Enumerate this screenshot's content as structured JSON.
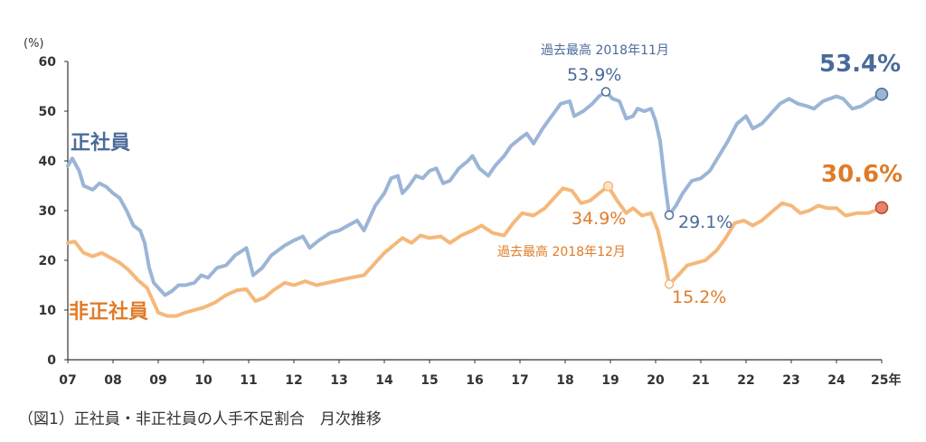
{
  "chart_data": {
    "type": "line",
    "yunit": "(%)",
    "ylim": [
      0,
      60
    ],
    "yticks": [
      "0",
      "10",
      "20",
      "30",
      "40",
      "50",
      "60"
    ],
    "xticks": [
      "07",
      "08",
      "09",
      "10",
      "11",
      "12",
      "13",
      "14",
      "15",
      "16",
      "17",
      "18",
      "19",
      "20",
      "21",
      "22",
      "23",
      "24",
      "25年"
    ],
    "series": [
      {
        "name": "正社員",
        "color": "#9bb5d6",
        "label_color": "#4a6b9a",
        "points": [
          [
            2007.0,
            39.0
          ],
          [
            2007.1,
            40.5
          ],
          [
            2007.25,
            38.0
          ],
          [
            2007.35,
            35.0
          ],
          [
            2007.55,
            34.2
          ],
          [
            2007.7,
            35.5
          ],
          [
            2007.85,
            34.8
          ],
          [
            2008.0,
            33.5
          ],
          [
            2008.15,
            32.5
          ],
          [
            2008.3,
            30.0
          ],
          [
            2008.45,
            27.0
          ],
          [
            2008.6,
            26.0
          ],
          [
            2008.7,
            23.5
          ],
          [
            2008.8,
            18.5
          ],
          [
            2008.9,
            15.5
          ],
          [
            2009.0,
            14.5
          ],
          [
            2009.15,
            13.0
          ],
          [
            2009.3,
            13.8
          ],
          [
            2009.45,
            15.0
          ],
          [
            2009.6,
            15.0
          ],
          [
            2009.8,
            15.5
          ],
          [
            2009.95,
            17.0
          ],
          [
            2010.1,
            16.5
          ],
          [
            2010.3,
            18.5
          ],
          [
            2010.5,
            19.0
          ],
          [
            2010.7,
            21.0
          ],
          [
            2010.95,
            22.5
          ],
          [
            2011.1,
            17.0
          ],
          [
            2011.3,
            18.5
          ],
          [
            2011.5,
            21.0
          ],
          [
            2011.8,
            23.0
          ],
          [
            2012.0,
            24.0
          ],
          [
            2012.2,
            24.8
          ],
          [
            2012.35,
            22.5
          ],
          [
            2012.55,
            24.0
          ],
          [
            2012.8,
            25.5
          ],
          [
            2013.0,
            26.0
          ],
          [
            2013.2,
            27.0
          ],
          [
            2013.4,
            28.0
          ],
          [
            2013.55,
            26.0
          ],
          [
            2013.8,
            31.0
          ],
          [
            2014.0,
            33.5
          ],
          [
            2014.15,
            36.5
          ],
          [
            2014.3,
            37.0
          ],
          [
            2014.4,
            33.5
          ],
          [
            2014.55,
            35.0
          ],
          [
            2014.7,
            37.0
          ],
          [
            2014.85,
            36.5
          ],
          [
            2015.0,
            38.0
          ],
          [
            2015.15,
            38.5
          ],
          [
            2015.3,
            35.5
          ],
          [
            2015.45,
            36.0
          ],
          [
            2015.65,
            38.5
          ],
          [
            2015.85,
            40.0
          ],
          [
            2015.95,
            41.0
          ],
          [
            2016.1,
            38.5
          ],
          [
            2016.3,
            37.0
          ],
          [
            2016.45,
            39.0
          ],
          [
            2016.65,
            41.0
          ],
          [
            2016.8,
            43.0
          ],
          [
            2017.0,
            44.5
          ],
          [
            2017.15,
            45.5
          ],
          [
            2017.3,
            43.5
          ],
          [
            2017.5,
            46.5
          ],
          [
            2017.7,
            49.0
          ],
          [
            2017.9,
            51.5
          ],
          [
            2018.1,
            52.0
          ],
          [
            2018.2,
            49.0
          ],
          [
            2018.4,
            50.0
          ],
          [
            2018.6,
            51.5
          ],
          [
            2018.75,
            53.0
          ],
          [
            2018.9,
            53.9
          ],
          [
            2019.05,
            52.5
          ],
          [
            2019.2,
            52.0
          ],
          [
            2019.35,
            48.5
          ],
          [
            2019.5,
            49.0
          ],
          [
            2019.6,
            50.5
          ],
          [
            2019.75,
            50.0
          ],
          [
            2019.9,
            50.5
          ],
          [
            2020.0,
            48.0
          ],
          [
            2020.1,
            44.0
          ],
          [
            2020.2,
            36.0
          ],
          [
            2020.3,
            29.1
          ],
          [
            2020.45,
            31.0
          ],
          [
            2020.6,
            33.5
          ],
          [
            2020.8,
            36.0
          ],
          [
            2021.0,
            36.5
          ],
          [
            2021.2,
            38.0
          ],
          [
            2021.4,
            41.0
          ],
          [
            2021.6,
            44.0
          ],
          [
            2021.8,
            47.5
          ],
          [
            2022.0,
            49.0
          ],
          [
            2022.15,
            46.5
          ],
          [
            2022.35,
            47.5
          ],
          [
            2022.55,
            49.5
          ],
          [
            2022.75,
            51.5
          ],
          [
            2022.95,
            52.5
          ],
          [
            2023.15,
            51.5
          ],
          [
            2023.35,
            51.0
          ],
          [
            2023.5,
            50.5
          ],
          [
            2023.7,
            52.0
          ],
          [
            2023.85,
            52.5
          ],
          [
            2024.0,
            53.0
          ],
          [
            2024.15,
            52.5
          ],
          [
            2024.35,
            50.5
          ],
          [
            2024.55,
            51.0
          ],
          [
            2024.8,
            52.5
          ],
          [
            2025.0,
            53.4
          ]
        ]
      },
      {
        "name": "非正社員",
        "color": "#f5b87a",
        "label_color": "#e07b28",
        "points": [
          [
            2007.0,
            23.5
          ],
          [
            2007.15,
            23.8
          ],
          [
            2007.35,
            21.5
          ],
          [
            2007.55,
            20.8
          ],
          [
            2007.75,
            21.5
          ],
          [
            2007.95,
            20.5
          ],
          [
            2008.15,
            19.5
          ],
          [
            2008.35,
            18.0
          ],
          [
            2008.55,
            16.0
          ],
          [
            2008.75,
            14.5
          ],
          [
            2008.9,
            11.5
          ],
          [
            2009.0,
            9.5
          ],
          [
            2009.2,
            8.8
          ],
          [
            2009.4,
            8.8
          ],
          [
            2009.6,
            9.5
          ],
          [
            2009.8,
            10.0
          ],
          [
            2010.0,
            10.5
          ],
          [
            2010.25,
            11.5
          ],
          [
            2010.5,
            13.0
          ],
          [
            2010.75,
            14.0
          ],
          [
            2010.95,
            14.2
          ],
          [
            2011.15,
            11.8
          ],
          [
            2011.35,
            12.5
          ],
          [
            2011.55,
            14.0
          ],
          [
            2011.8,
            15.5
          ],
          [
            2012.0,
            15.0
          ],
          [
            2012.25,
            15.8
          ],
          [
            2012.5,
            15.0
          ],
          [
            2012.75,
            15.5
          ],
          [
            2013.0,
            16.0
          ],
          [
            2013.25,
            16.5
          ],
          [
            2013.55,
            17.0
          ],
          [
            2013.8,
            19.5
          ],
          [
            2014.0,
            21.5
          ],
          [
            2014.2,
            23.0
          ],
          [
            2014.4,
            24.5
          ],
          [
            2014.6,
            23.5
          ],
          [
            2014.8,
            25.0
          ],
          [
            2015.0,
            24.5
          ],
          [
            2015.25,
            24.8
          ],
          [
            2015.45,
            23.5
          ],
          [
            2015.7,
            25.0
          ],
          [
            2015.95,
            26.0
          ],
          [
            2016.15,
            27.0
          ],
          [
            2016.4,
            25.5
          ],
          [
            2016.65,
            25.0
          ],
          [
            2016.85,
            27.5
          ],
          [
            2017.05,
            29.5
          ],
          [
            2017.3,
            29.0
          ],
          [
            2017.55,
            30.5
          ],
          [
            2017.75,
            32.5
          ],
          [
            2017.95,
            34.5
          ],
          [
            2018.15,
            34.0
          ],
          [
            2018.35,
            31.5
          ],
          [
            2018.55,
            32.0
          ],
          [
            2018.75,
            33.5
          ],
          [
            2018.95,
            34.9
          ],
          [
            2019.15,
            32.0
          ],
          [
            2019.35,
            29.5
          ],
          [
            2019.5,
            30.5
          ],
          [
            2019.7,
            29.0
          ],
          [
            2019.9,
            29.5
          ],
          [
            2020.05,
            26.0
          ],
          [
            2020.2,
            20.0
          ],
          [
            2020.3,
            15.2
          ],
          [
            2020.5,
            17.0
          ],
          [
            2020.7,
            19.0
          ],
          [
            2020.9,
            19.5
          ],
          [
            2021.1,
            20.0
          ],
          [
            2021.35,
            22.0
          ],
          [
            2021.55,
            24.5
          ],
          [
            2021.75,
            27.5
          ],
          [
            2021.95,
            28.0
          ],
          [
            2022.15,
            27.0
          ],
          [
            2022.35,
            28.0
          ],
          [
            2022.6,
            30.0
          ],
          [
            2022.8,
            31.5
          ],
          [
            2023.0,
            31.0
          ],
          [
            2023.2,
            29.5
          ],
          [
            2023.4,
            30.0
          ],
          [
            2023.6,
            31.0
          ],
          [
            2023.8,
            30.5
          ],
          [
            2024.0,
            30.5
          ],
          [
            2024.2,
            29.0
          ],
          [
            2024.45,
            29.5
          ],
          [
            2024.7,
            29.5
          ],
          [
            2024.85,
            30.0
          ],
          [
            2025.0,
            30.6
          ]
        ]
      }
    ],
    "annotations": {
      "seishain_label": "正社員",
      "hiseishain_label": "非正社員",
      "peak_seishain_text": "過去最高 2018年11月",
      "peak_seishain_value": "53.9%",
      "peak_hiseishain_text": "過去最高 2018年12月",
      "peak_hiseishain_value": "34.9%",
      "low_seishain_value": "29.1%",
      "low_hiseishain_value": "15.2%",
      "latest_seishain_value": "53.4%",
      "latest_hiseishain_value": "30.6%"
    },
    "caption": "（図1）正社員・非正社員の人手不足割合　月次推移"
  }
}
